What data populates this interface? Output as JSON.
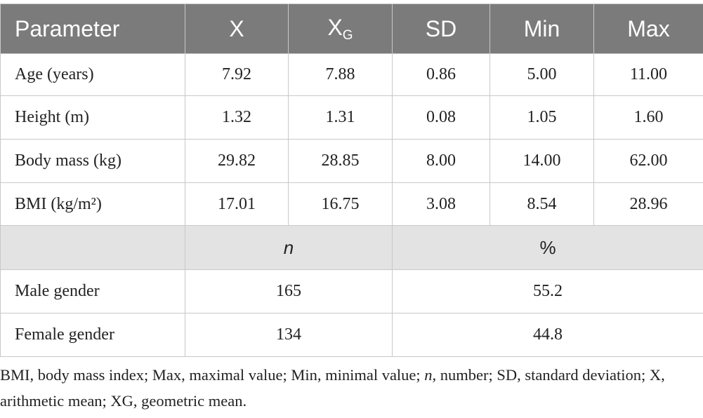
{
  "table": {
    "header": [
      "Parameter",
      {
        "base": "X"
      },
      {
        "base": "X",
        "sub": "G"
      },
      "SD",
      "Min",
      "Max"
    ],
    "rows": [
      [
        "Age (years)",
        "7.92",
        "7.88",
        "0.86",
        "5.00",
        "11.00"
      ],
      [
        "Height (m)",
        "1.32",
        "1.31",
        "0.08",
        "1.05",
        "1.60"
      ],
      [
        "Body mass (kg)",
        "29.82",
        "28.85",
        "8.00",
        "14.00",
        "62.00"
      ],
      [
        "BMI (kg/m²)",
        "17.01",
        "16.75",
        "3.08",
        "8.54",
        "28.96"
      ]
    ],
    "subheader": [
      "n",
      "%"
    ],
    "gender_rows": [
      [
        "Male gender",
        "165",
        "55.2"
      ],
      [
        "Female gender",
        "134",
        "44.8"
      ]
    ]
  },
  "footnote": [
    "BMI, body mass index; Max, maximal value; Min, minimal value; ",
    "n",
    ", number; SD, standard deviation; X, arithmetic mean; XG, geometric mean."
  ]
}
